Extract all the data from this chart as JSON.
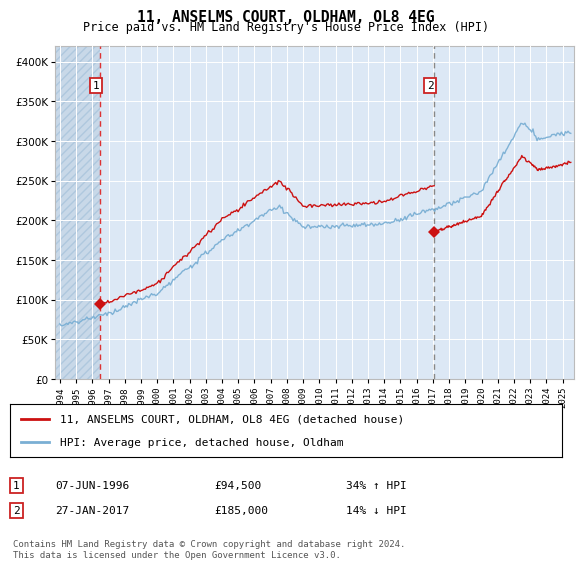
{
  "title": "11, ANSELMS COURT, OLDHAM, OL8 4EG",
  "subtitle": "Price paid vs. HM Land Registry's House Price Index (HPI)",
  "legend_line1": "11, ANSELMS COURT, OLDHAM, OL8 4EG (detached house)",
  "legend_line2": "HPI: Average price, detached house, Oldham",
  "footnote": "Contains HM Land Registry data © Crown copyright and database right 2024.\nThis data is licensed under the Open Government Licence v3.0.",
  "transaction1_date": "07-JUN-1996",
  "transaction1_price": "£94,500",
  "transaction1_info": "34% ↑ HPI",
  "transaction2_date": "27-JAN-2017",
  "transaction2_price": "£185,000",
  "transaction2_info": "14% ↓ HPI",
  "ylim": [
    0,
    420000
  ],
  "yticks": [
    0,
    50000,
    100000,
    150000,
    200000,
    250000,
    300000,
    350000,
    400000
  ],
  "hpi_color": "#7aafd4",
  "price_color": "#cc1111",
  "dashed1_color": "#dd3333",
  "dashed2_color": "#888888",
  "marker_color": "#cc1111",
  "plot_bg": "#dce8f5",
  "hatch_facecolor": "#c8d8e8",
  "t1": 1996.458,
  "t2": 2017.083,
  "p1": 94500,
  "p2": 185000,
  "xlim_left": 1993.7,
  "xlim_right": 2025.7
}
